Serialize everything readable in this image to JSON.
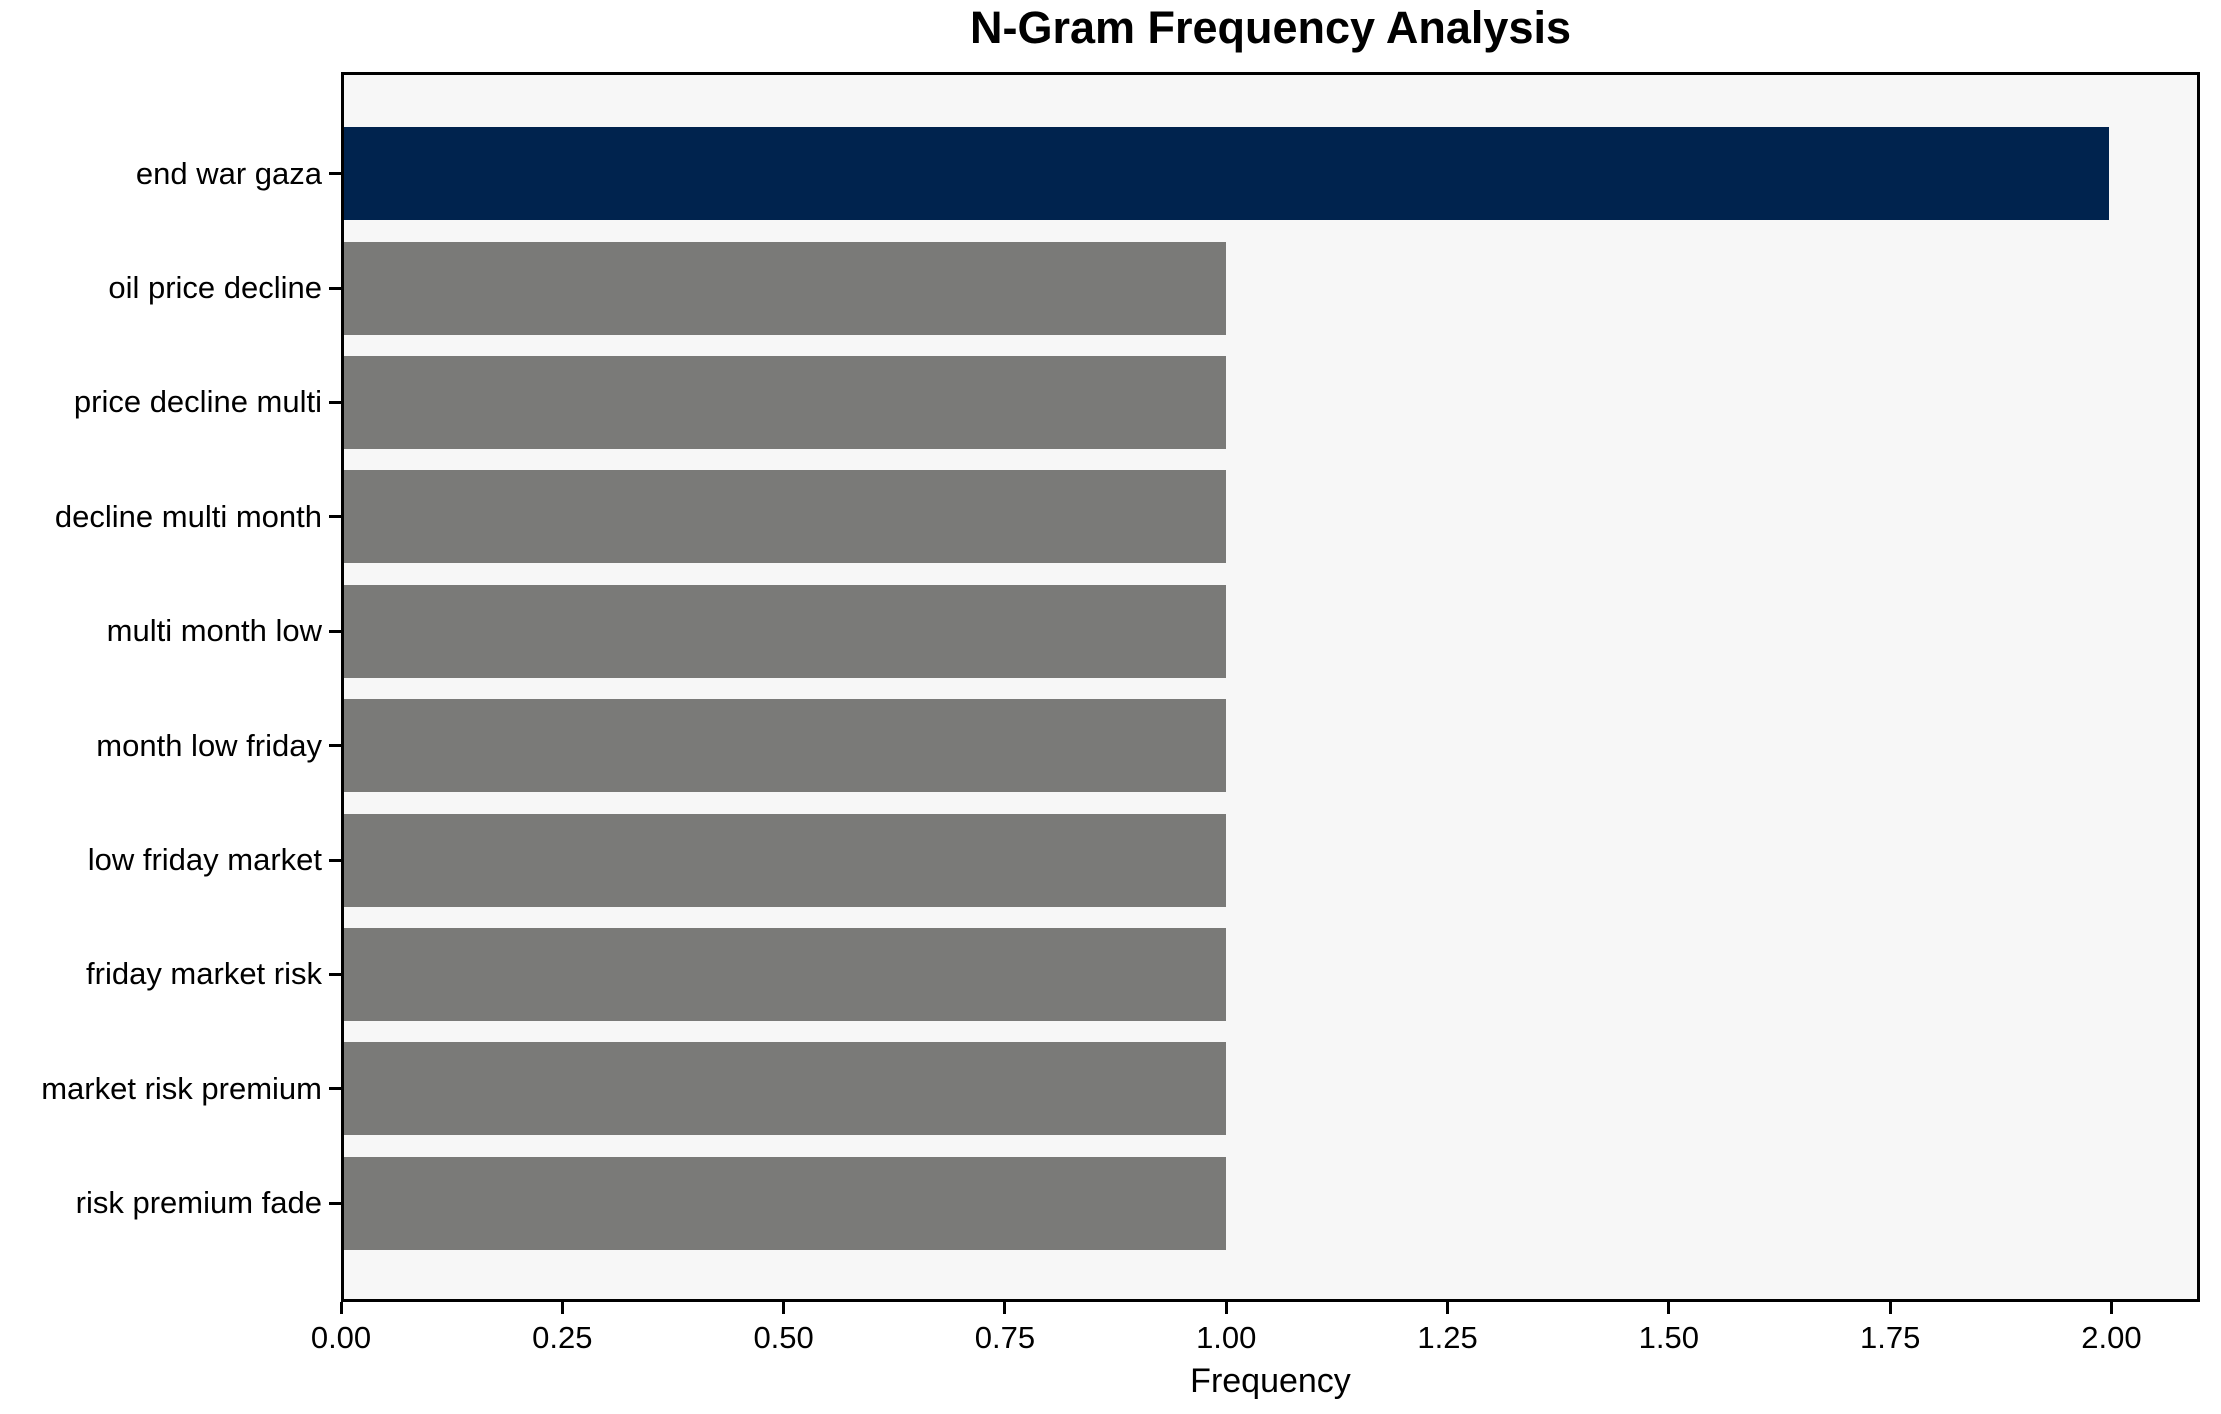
{
  "chart_data": {
    "type": "bar",
    "orientation": "horizontal",
    "title": "N-Gram Frequency Analysis",
    "xlabel": "Frequency",
    "ylabel": "",
    "categories": [
      "end war gaza",
      "oil price decline",
      "price decline multi",
      "decline multi month",
      "multi month low",
      "month low friday",
      "low friday market",
      "friday market risk",
      "market risk premium",
      "risk premium fade"
    ],
    "values": [
      2,
      1,
      1,
      1,
      1,
      1,
      1,
      1,
      1,
      1
    ],
    "bar_colors": [
      "#00234e",
      "#7a7a78",
      "#7a7a78",
      "#7a7a78",
      "#7a7a78",
      "#7a7a78",
      "#7a7a78",
      "#7a7a78",
      "#7a7a78",
      "#7a7a78"
    ],
    "highlight_color": "#00234e",
    "default_bar_color": "#7a7a78",
    "plot_background": "#f7f7f7",
    "figure_background": "#ffffff",
    "spine_color": "#000000",
    "xlim": [
      0,
      2.1
    ],
    "x_ticks": [
      0,
      0.25,
      0.5,
      0.75,
      1.0,
      1.25,
      1.5,
      1.75,
      2.0
    ],
    "x_tick_labels": [
      "0.00",
      "0.25",
      "0.50",
      "0.75",
      "1.00",
      "1.25",
      "1.50",
      "1.75",
      "2.00"
    ],
    "grid": false,
    "legend": null
  }
}
